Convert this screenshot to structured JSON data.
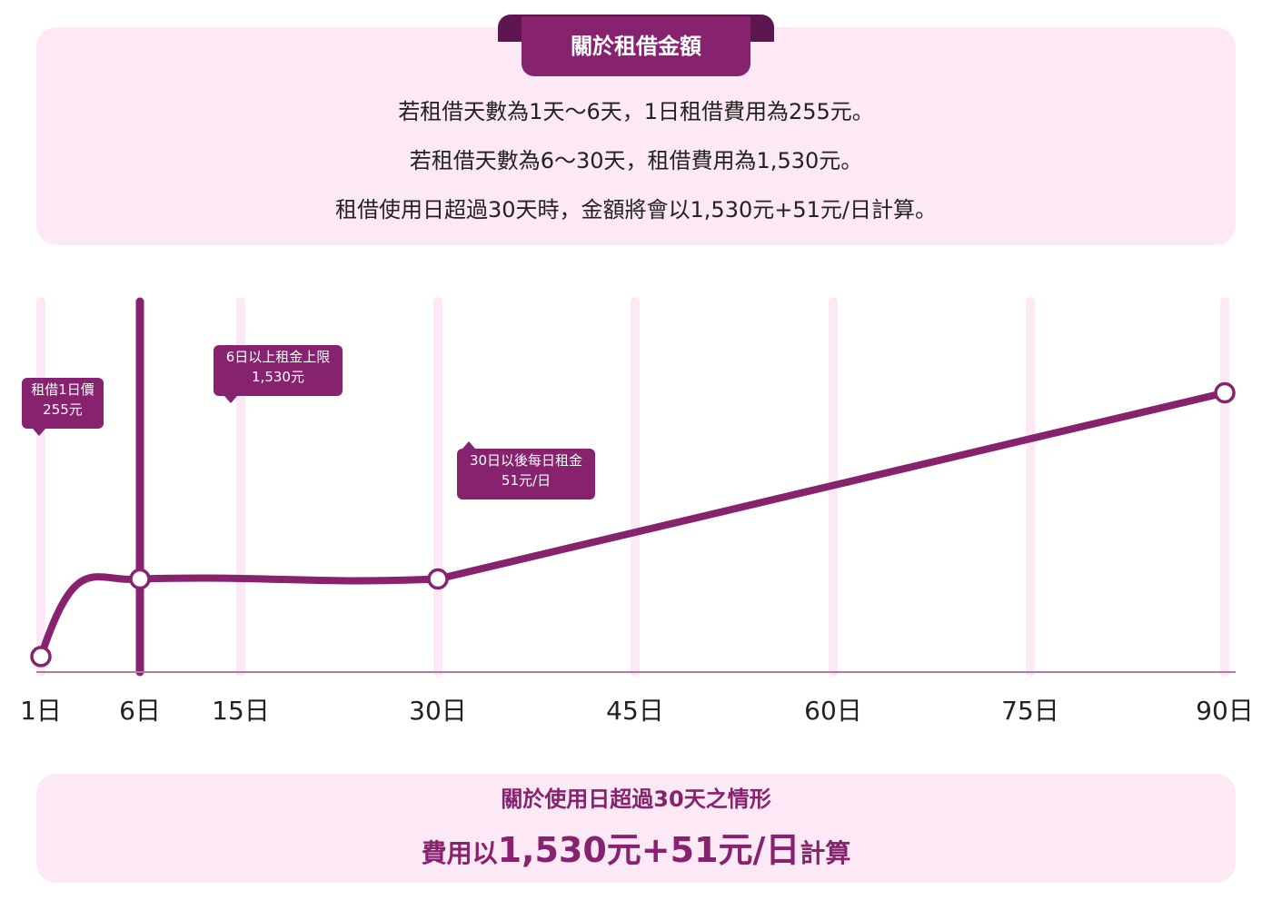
{
  "info": {
    "title": "關於租借金額",
    "lines": [
      "若租借天數為1天～6天，1日租借費用為255元。",
      "若租借天數為6～30天，租借費用為1,530元。",
      "租借使用日超過30天時，金額將會以1,530元+51元/日計算。"
    ]
  },
  "chart_data": {
    "type": "line",
    "x_ticks": [
      {
        "value": 1,
        "label": "1日"
      },
      {
        "value": 6,
        "label": "6日"
      },
      {
        "value": 15,
        "label": "15日"
      },
      {
        "value": 30,
        "label": "30日"
      },
      {
        "value": 45,
        "label": "45日"
      },
      {
        "value": 60,
        "label": "60日"
      },
      {
        "value": 75,
        "label": "75日"
      },
      {
        "value": 90,
        "label": "90日"
      }
    ],
    "xlim": [
      1,
      90
    ],
    "ylim": [
      0,
      6120
    ],
    "series": [
      {
        "x": [
          1,
          6,
          30,
          90
        ],
        "y": [
          255,
          1530,
          1530,
          4590
        ]
      }
    ],
    "highlight_x": 6,
    "grid": true,
    "colors": {
      "line": "#86226e",
      "grid": "#fde8f6",
      "axis": "#b07aa2",
      "marker_fill": "#ffffff"
    },
    "annotations": [
      {
        "line1": "租借1日價",
        "line2": "255元"
      },
      {
        "line1": "6日以上租金上限",
        "line2": "1,530元"
      },
      {
        "line1": "30日以後每日租金",
        "line2": "51元/日"
      }
    ]
  },
  "summary": {
    "title": "關於使用日超過30天之情形",
    "formula_prefix": "費用以",
    "formula_main": "1,530元+51元/日",
    "formula_suffix": "計算"
  }
}
